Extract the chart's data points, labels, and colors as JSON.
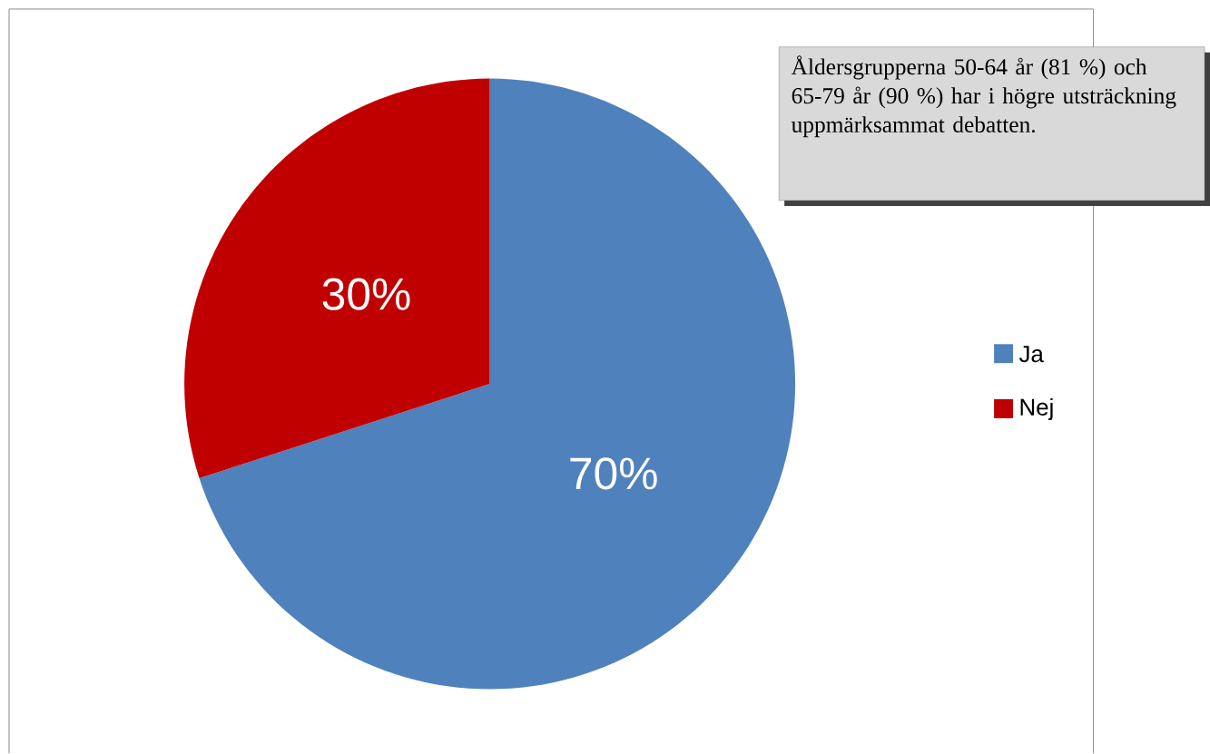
{
  "chart_data": {
    "type": "pie",
    "categories": [
      "Ja",
      "Nej"
    ],
    "values": [
      70,
      30
    ],
    "colors": [
      "#4f81bd",
      "#c00000"
    ],
    "value_labels": [
      "70%",
      "30%"
    ],
    "legend": "right",
    "annotations": [
      "Åldersgrupperna 50-64 år (81 %) och 65-79 år (90 %) har i högre utsträckning uppmärksammat debatten."
    ]
  }
}
